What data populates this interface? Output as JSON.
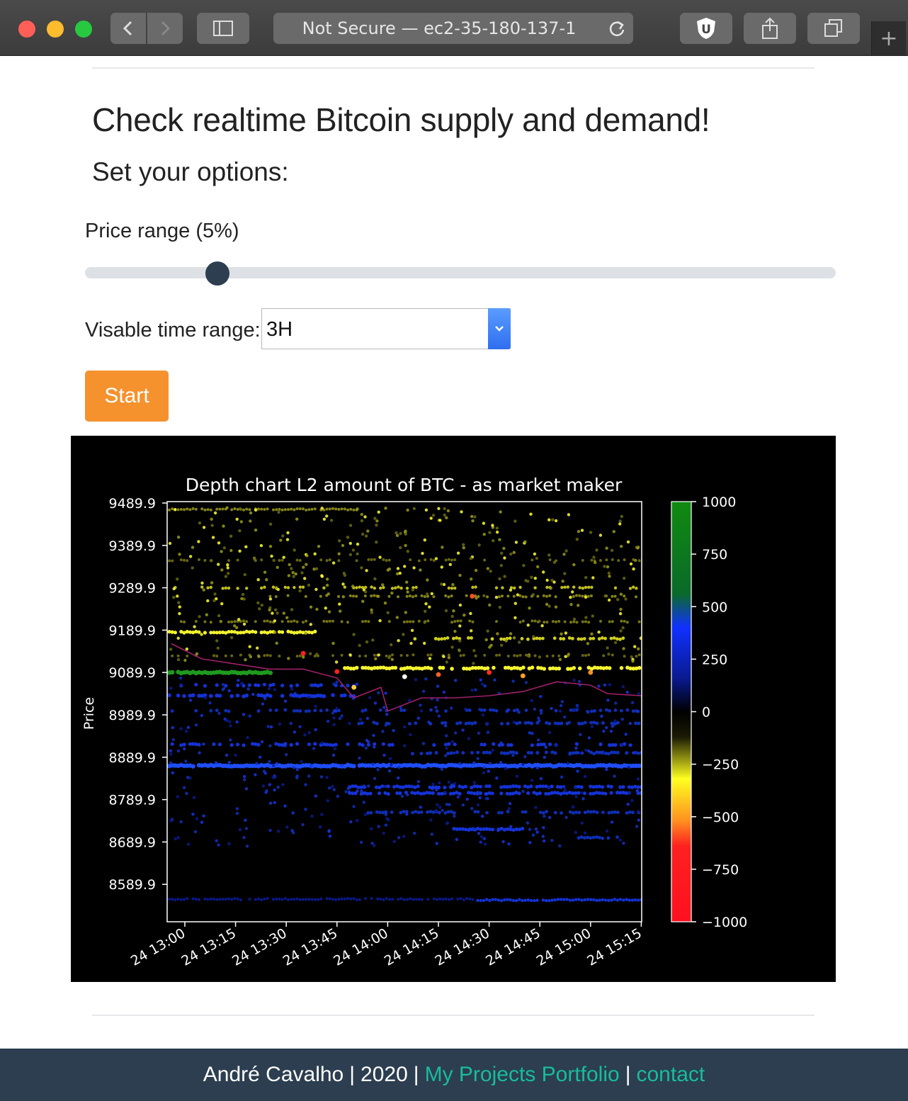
{
  "browser": {
    "url": "Not Secure — ec2-35-180-137-1",
    "extension_icon": "ublock-icon",
    "colors": {
      "chrome": "#3f3f3f",
      "close": "#ff5f57",
      "minimize": "#febc2e",
      "maximize": "#28c840"
    }
  },
  "page": {
    "title": "Check realtime Bitcoin supply and demand!",
    "subtitle": "Set your options:",
    "price_range_label": "Price range (5%)",
    "price_range_value": 5,
    "time_range_label": "Visable time range:",
    "time_range_value": "3H",
    "start_label": "Start",
    "accent_color": "#f5922e"
  },
  "chart_data": {
    "type": "heatmap",
    "title": "Depth chart L2 amount of BTC - as market maker",
    "ylabel": "Price",
    "y_ticks": [
      "9489.9",
      "9389.9",
      "9289.9",
      "9189.9",
      "9089.9",
      "8989.9",
      "8889.9",
      "8789.9",
      "8689.9",
      "8589.9"
    ],
    "ylim": [
      8530,
      9490
    ],
    "x_ticks": [
      "24 13:00",
      "24 13:15",
      "24 13:30",
      "24 13:45",
      "24 14:00",
      "24 14:15",
      "24 14:30",
      "24 14:45",
      "24 15:00",
      "24 15:15"
    ],
    "colorbar_ticks": [
      "1000",
      "750",
      "500",
      "250",
      "0",
      "−250",
      "−500",
      "−750",
      "−1000"
    ],
    "colorbar_range": [
      -1000,
      1000
    ],
    "colors": {
      "positive_high": "#108a10",
      "positive_mid": "#1030ff",
      "zero": "#000000",
      "negative_mid": "#ffff20",
      "negative_high": "#ff1020",
      "price_line": "#a0206a"
    },
    "mid_price_series": {
      "x": [
        "24 12:56",
        "24 13:05",
        "24 13:15",
        "24 13:25",
        "24 13:35",
        "24 13:45",
        "24 13:50",
        "24 13:58",
        "24 14:00",
        "24 14:10",
        "24 14:20",
        "24 14:30",
        "24 14:40",
        "24 14:50",
        "24 15:00",
        "24 15:05",
        "24 15:15"
      ],
      "y": [
        9158,
        9122,
        9110,
        9098,
        9098,
        9077,
        9030,
        9055,
        8999,
        9030,
        9030,
        9035,
        9045,
        9068,
        9060,
        9040,
        9035
      ]
    }
  },
  "footer": {
    "author": "André Cavalho",
    "separator": "|",
    "year": "2020",
    "portfolio_label": "My Projects Portfolio",
    "contact_label": "contact"
  }
}
